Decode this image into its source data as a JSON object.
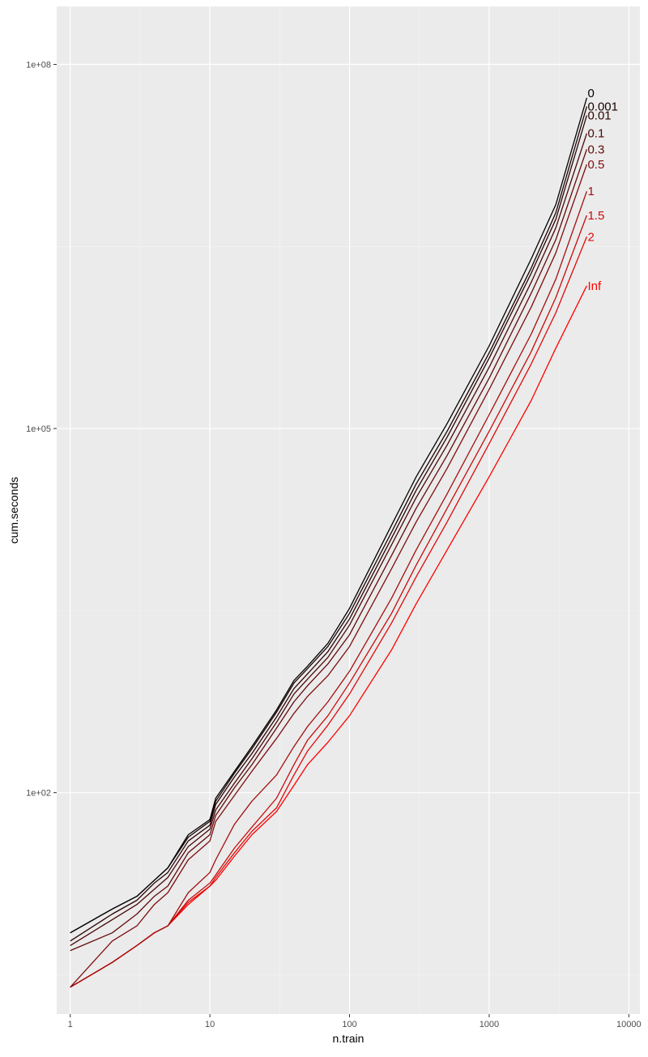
{
  "chart_data": {
    "type": "line",
    "title": "",
    "xlabel": "n.train",
    "ylabel": "cum.seconds",
    "x_scale": "log10",
    "y_scale": "log10",
    "xlim": [
      0.8,
      12000
    ],
    "ylim": [
      1.5,
      300000000
    ],
    "x_ticks": [
      {
        "value": 1,
        "label": "1"
      },
      {
        "value": 10,
        "label": "10"
      },
      {
        "value": 100,
        "label": "100"
      },
      {
        "value": 1000,
        "label": "1000"
      },
      {
        "value": 10000,
        "label": "10000"
      }
    ],
    "y_ticks": [
      {
        "value": 100,
        "label": "1e+02"
      },
      {
        "value": 100000,
        "label": "1e+05"
      },
      {
        "value": 100000000,
        "label": "1e+08"
      }
    ],
    "grid": true,
    "legend": "direct labels at line ends",
    "colors": {
      "panel_bg": "#ebebeb",
      "grid_major": "#ffffff",
      "grid_minor": "#f5f5f5",
      "low_penalty": "#000000",
      "high_penalty": "#ff0000"
    },
    "series": [
      {
        "name": "0",
        "color": "#000000",
        "x": [
          1,
          2,
          3,
          4,
          5,
          7,
          10,
          11,
          15,
          20,
          30,
          40,
          50,
          70,
          100,
          200,
          300,
          500,
          1000,
          2000,
          3000,
          5000
        ],
        "y": [
          7,
          11,
          14,
          19,
          24,
          45,
          60,
          90,
          150,
          240,
          480,
          840,
          1100,
          1700,
          3300,
          16000,
          40000,
          110000,
          480000,
          2500000,
          7000000,
          53000000
        ]
      },
      {
        "name": "0.001",
        "color": "#1a0000",
        "x": [
          1,
          2,
          3,
          4,
          5,
          7,
          10,
          11,
          15,
          20,
          30,
          40,
          50,
          70,
          100,
          200,
          300,
          500,
          1000,
          2000,
          3000,
          5000
        ],
        "y": [
          7,
          11,
          14,
          19,
          24,
          43,
          58,
          85,
          145,
          230,
          460,
          800,
          1050,
          1600,
          3000,
          14000,
          35000,
          95000,
          420000,
          2100000,
          6000000,
          45000000
        ]
      },
      {
        "name": "0.01",
        "color": "#2b0303",
        "x": [
          1,
          2,
          3,
          4,
          5,
          7,
          10,
          11,
          15,
          20,
          30,
          40,
          50,
          70,
          100,
          200,
          300,
          500,
          1000,
          2000,
          3000,
          5000
        ],
        "y": [
          6,
          10,
          13,
          18,
          22,
          40,
          54,
          80,
          135,
          210,
          420,
          720,
          950,
          1450,
          2700,
          12500,
          31000,
          85000,
          380000,
          1900000,
          5300000,
          38000000
        ]
      },
      {
        "name": "0.1",
        "color": "#4a0707",
        "x": [
          1,
          2,
          3,
          4,
          5,
          7,
          10,
          11,
          15,
          20,
          30,
          40,
          50,
          70,
          100,
          200,
          300,
          500,
          1000,
          2000,
          3000,
          5000
        ],
        "y": [
          5.5,
          9,
          12,
          16,
          20,
          36,
          50,
          72,
          120,
          190,
          380,
          650,
          860,
          1300,
          2400,
          11000,
          27000,
          73000,
          320000,
          1600000,
          4500000,
          27000000
        ]
      },
      {
        "name": "0.3",
        "color": "#620909",
        "x": [
          1,
          2,
          3,
          4,
          5,
          7,
          10,
          11,
          15,
          20,
          30,
          40,
          50,
          70,
          100,
          200,
          300,
          500,
          1000,
          2000,
          3000,
          5000
        ],
        "y": [
          5,
          7,
          10,
          14,
          17,
          32,
          45,
          65,
          110,
          170,
          340,
          560,
          760,
          1150,
          2000,
          9000,
          22000,
          60000,
          260000,
          1300000,
          3600000,
          20000000
        ]
      },
      {
        "name": "0.5",
        "color": "#7f0c0c",
        "x": [
          1,
          2,
          3,
          4,
          5,
          7,
          10,
          11,
          15,
          20,
          30,
          40,
          50,
          70,
          100,
          200,
          300,
          500,
          1000,
          2000,
          3000,
          5000
        ],
        "y": [
          2.5,
          6,
          8,
          12,
          15,
          28,
          40,
          58,
          95,
          150,
          280,
          450,
          620,
          920,
          1600,
          7000,
          17000,
          47000,
          210000,
          1000000,
          2800000,
          15000000
        ]
      },
      {
        "name": "1",
        "color": "#a40e0e",
        "x": [
          1,
          2,
          3,
          4,
          5,
          7,
          10,
          11,
          15,
          20,
          30,
          40,
          50,
          70,
          100,
          200,
          300,
          500,
          1000,
          2000,
          3000,
          5000
        ],
        "y": [
          2.5,
          4,
          5.5,
          7,
          8,
          15,
          22,
          28,
          55,
          85,
          140,
          240,
          350,
          560,
          1000,
          4000,
          10000,
          29000,
          130000,
          600000,
          1700000,
          9000000
        ]
      },
      {
        "name": "1.5",
        "color": "#c80c0c",
        "x": [
          1,
          2,
          3,
          4,
          5,
          7,
          10,
          11,
          15,
          20,
          30,
          40,
          50,
          70,
          100,
          200,
          300,
          500,
          1000,
          2000,
          3000,
          5000
        ],
        "y": [
          2.5,
          4,
          5.5,
          7,
          8,
          13,
          18,
          21,
          35,
          52,
          90,
          170,
          270,
          430,
          800,
          3000,
          7500,
          22000,
          95000,
          430000,
          1200000,
          5700000
        ]
      },
      {
        "name": "2",
        "color": "#e00808",
        "x": [
          1,
          2,
          3,
          4,
          5,
          7,
          10,
          11,
          15,
          20,
          30,
          40,
          50,
          70,
          100,
          200,
          300,
          500,
          1000,
          2000,
          3000,
          5000
        ],
        "y": [
          2.5,
          4,
          5.5,
          7,
          8,
          12.5,
          17,
          20,
          32,
          48,
          75,
          140,
          220,
          360,
          650,
          2500,
          6000,
          17000,
          75000,
          340000,
          900000,
          3800000
        ]
      },
      {
        "name": "Inf",
        "color": "#ff0000",
        "x": [
          1,
          2,
          3,
          4,
          5,
          7,
          10,
          11,
          15,
          20,
          30,
          40,
          50,
          70,
          100,
          200,
          300,
          500,
          1000,
          2000,
          3000,
          5000
        ],
        "y": [
          2.5,
          4,
          5.5,
          7,
          8,
          12,
          17,
          19,
          30,
          45,
          70,
          115,
          170,
          260,
          430,
          1500,
          3600,
          10000,
          40000,
          170000,
          460000,
          1500000
        ]
      }
    ]
  }
}
